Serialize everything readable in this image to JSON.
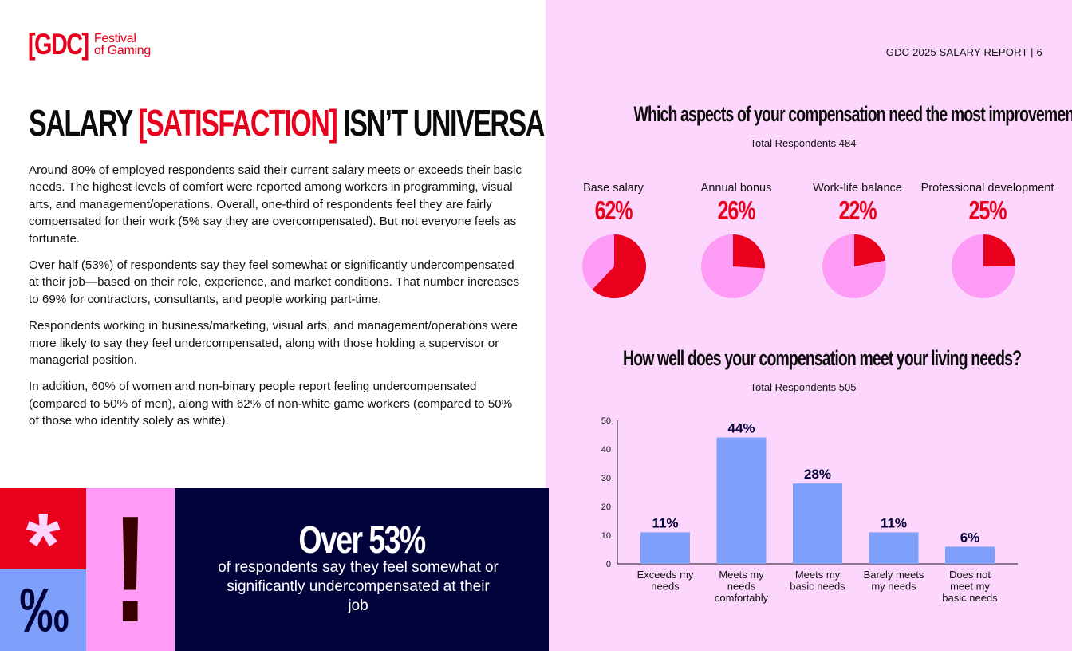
{
  "logo": {
    "mark": "[GDC]",
    "line1": "Festival",
    "line2": "of Gaming"
  },
  "header": {
    "report": "GDC 2025 SALARY REPORT  |  6"
  },
  "title": {
    "part1": "SALARY ",
    "highlight": "[SATISFACTION]",
    "part2": " ISN’T UNIVERSAL"
  },
  "body": {
    "p1": "Around 80% of employed respondents said their current salary meets or exceeds their basic needs. The highest levels of comfort were reported among workers in programming, visual arts, and management/operations. Overall, one-third of respondents feel they are fairly compensated for their work (5% say they are overcompensated). But not everyone feels as fortunate.",
    "p2": "Over half (53%) of respondents say they feel somewhat or significantly undercompensated at their job—based on their role, experience, and market conditions. That number increases to 69% for contractors, consultants, and people working part-time.",
    "p3": "Respondents working in business/marketing, visual arts, and management/operations were more likely to say they feel undercompensated, along with those holding a supervisor or managerial position.",
    "p4": "In addition, 60% of women and non-binary people report feeling undercompensated (compared to 50% of men), along with 62% of non-white game workers (compared to 50% of those who identify solely as white)."
  },
  "callout": {
    "asterisk": "*",
    "permille": "‰",
    "exclaim": "!",
    "headline": "Over 53%",
    "sub": "of respondents say they feel somewhat or significantly undercompensated at their job"
  },
  "colors": {
    "accent_red": "#e8001c",
    "pink_bg": "#fdd6fd",
    "pie_light": "#fd9bf5",
    "bar_blue": "#7ea0fb",
    "navy": "#02023b"
  },
  "chart_data": [
    {
      "type": "pie",
      "title": "Which aspects of your compensation need the most improvement?",
      "subtitle": "Total Respondents 484",
      "categories": [
        "Base salary",
        "Annual bonus",
        "Work-life balance",
        "Professional development"
      ],
      "values": [
        62,
        26,
        22,
        25
      ],
      "value_labels": [
        "62%",
        "26%",
        "22%",
        "25%"
      ]
    },
    {
      "type": "bar",
      "title": "How well does your compensation meet your living needs?",
      "subtitle": "Total Respondents 505",
      "categories": [
        [
          "Exceeds my",
          "needs"
        ],
        [
          "Meets my",
          "needs",
          "comfortably"
        ],
        [
          "Meets my",
          "basic needs"
        ],
        [
          "Barely meets",
          "my needs"
        ],
        [
          "Does not",
          "meet my",
          "basic needs"
        ]
      ],
      "values": [
        11,
        44,
        28,
        11,
        6
      ],
      "value_labels": [
        "11%",
        "44%",
        "28%",
        "11%",
        "6%"
      ],
      "ylim": [
        0,
        50
      ],
      "yticks": [
        0,
        10,
        20,
        30,
        40,
        50
      ],
      "grid": false
    }
  ]
}
